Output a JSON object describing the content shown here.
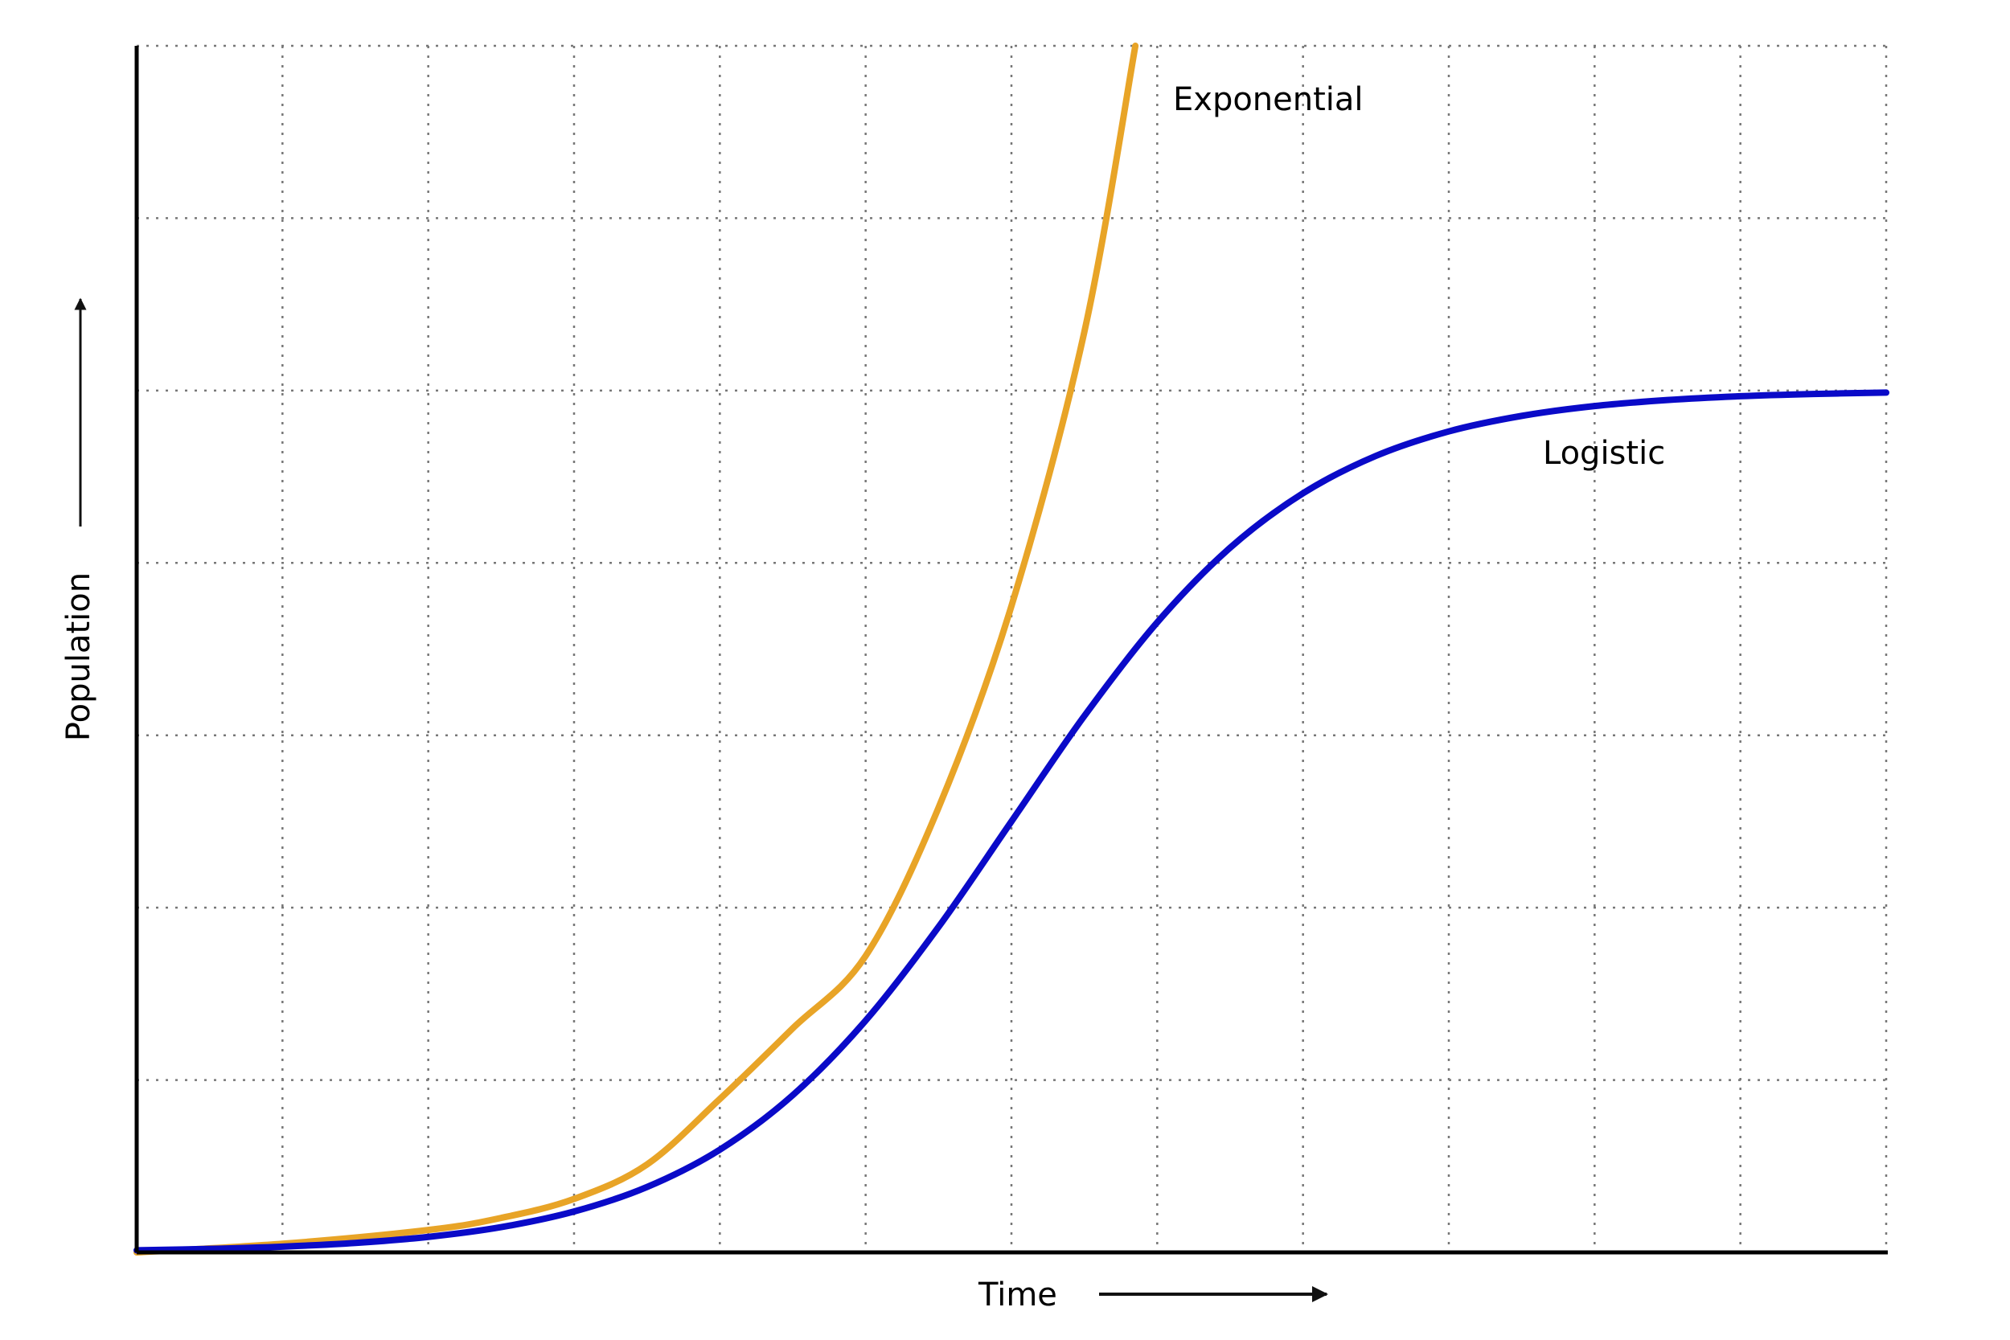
{
  "chart_data": {
    "type": "line",
    "x_label": "Time",
    "y_label": "Population",
    "xlim": [
      0,
      12
    ],
    "ylim": [
      0,
      7
    ],
    "xticks": [
      0,
      1,
      2,
      3,
      4,
      5,
      6,
      7,
      8,
      9,
      10,
      11,
      12
    ],
    "yticks": [
      0,
      1,
      2,
      3,
      4,
      5,
      6,
      7
    ],
    "grid": true,
    "series": [
      {
        "name": "Exponential",
        "color": "#e8a427",
        "x": [
          0,
          1,
          2,
          2.5,
          3,
          3.5,
          4,
          4.5,
          5,
          5.5,
          6,
          6.5,
          6.85
        ],
        "values": [
          0,
          0.05,
          0.13,
          0.2,
          0.31,
          0.51,
          0.89,
          1.3,
          1.72,
          2.58,
          3.75,
          5.34,
          7
        ]
      },
      {
        "name": "Logistic",
        "color": "#0a0ac8",
        "x": [
          0,
          0.5,
          1,
          1.5,
          2,
          2.5,
          3,
          3.5,
          4,
          4.5,
          5,
          5.5,
          6,
          6.5,
          7,
          7.5,
          8,
          8.5,
          9,
          9.5,
          10,
          10.5,
          11,
          11.5,
          12
        ],
        "values": [
          0.0124,
          0.0204,
          0.0335,
          0.0549,
          0.0899,
          0.1465,
          0.2371,
          0.3793,
          0.596,
          0.912,
          1.345,
          1.888,
          2.5,
          3.112,
          3.655,
          4.088,
          4.404,
          4.621,
          4.763,
          4.853,
          4.91,
          4.945,
          4.967,
          4.98,
          4.988
        ]
      }
    ]
  }
}
